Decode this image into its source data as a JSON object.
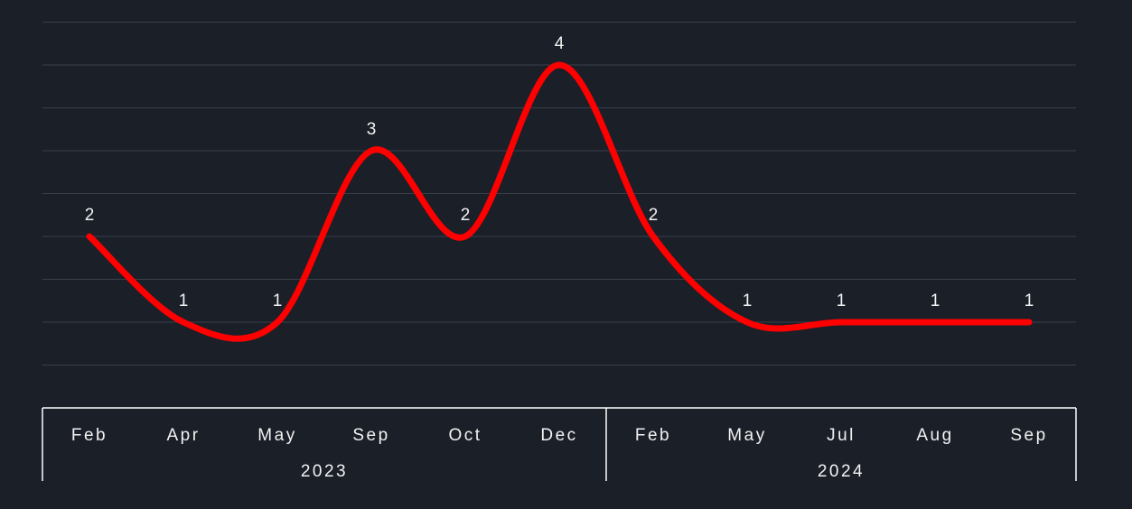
{
  "chart_data": {
    "type": "line",
    "smooth": true,
    "categories": [
      "Feb",
      "Apr",
      "May",
      "Sep",
      "Oct",
      "Dec",
      "Feb",
      "May",
      "Jul",
      "Aug",
      "Sep"
    ],
    "groups": [
      {
        "label": "2023",
        "count": 6
      },
      {
        "label": "2024",
        "count": 5
      }
    ],
    "series": [
      {
        "values": [
          2,
          1,
          1,
          3,
          2,
          4,
          2,
          1,
          1,
          1,
          1
        ]
      }
    ],
    "data_labels": true,
    "ylim": [
      0,
      4.5
    ],
    "grid": true,
    "colors": {
      "background": "#1b1f28",
      "line": "#ff0000",
      "grid": "#3a3f4b",
      "text": "#f2f2f2",
      "axis": "#ffffff"
    }
  }
}
